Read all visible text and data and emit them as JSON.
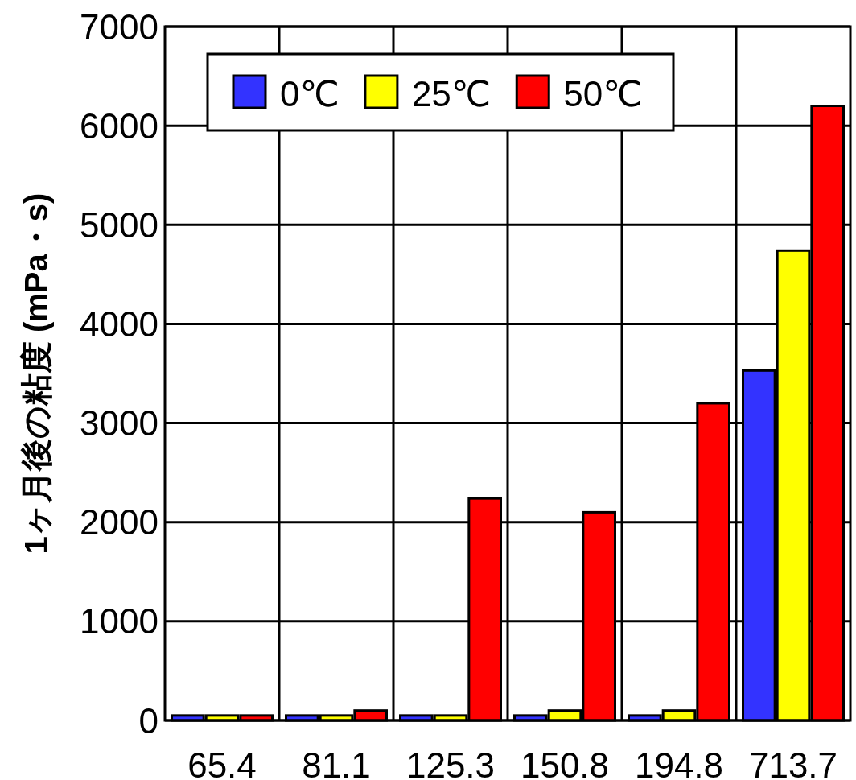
{
  "chart_data": {
    "type": "bar",
    "ylabel": "1ヶ月後の粘度 (mPa・s)",
    "categories": [
      "65.4",
      "81.1",
      "125.3",
      "150.8",
      "194.8",
      "713.7"
    ],
    "series": [
      {
        "name": "0℃",
        "color": "#3333ff",
        "values": [
          50,
          50,
          50,
          50,
          50,
          3530
        ]
      },
      {
        "name": "25℃",
        "color": "#ffff00",
        "values": [
          50,
          50,
          50,
          100,
          100,
          4740
        ]
      },
      {
        "name": "50℃",
        "color": "#ff0000",
        "values": [
          50,
          100,
          2240,
          2100,
          3200,
          6200
        ]
      }
    ],
    "ylim": [
      0,
      7000
    ],
    "yticks": [
      0,
      1000,
      2000,
      3000,
      4000,
      5000,
      6000,
      7000
    ],
    "grid": true,
    "legend": "top"
  }
}
